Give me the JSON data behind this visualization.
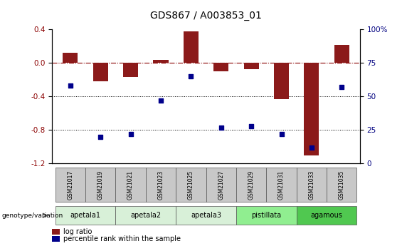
{
  "title": "GDS867 / A003853_01",
  "samples": [
    "GSM21017",
    "GSM21019",
    "GSM21021",
    "GSM21023",
    "GSM21025",
    "GSM21027",
    "GSM21029",
    "GSM21031",
    "GSM21033",
    "GSM21035"
  ],
  "log_ratio": [
    0.12,
    -0.22,
    -0.17,
    0.04,
    0.38,
    -0.1,
    -0.07,
    -0.43,
    -1.1,
    0.22
  ],
  "percentile_rank": [
    58,
    20,
    22,
    47,
    65,
    27,
    28,
    22,
    12,
    57
  ],
  "ylim_left": [
    -1.2,
    0.4
  ],
  "ylim_right": [
    0,
    100
  ],
  "yticks_left": [
    -1.2,
    -0.8,
    -0.4,
    0.0,
    0.4
  ],
  "yticks_right": [
    0,
    25,
    50,
    75,
    100
  ],
  "ytick_labels_right": [
    "0",
    "25",
    "50",
    "75",
    "100%"
  ],
  "hline_y": 0.0,
  "dotted_lines": [
    -0.4,
    -0.8
  ],
  "bar_color": "#8B1A1A",
  "dot_color": "#00008B",
  "groups": [
    {
      "label": "apetala1",
      "start": 0,
      "end": 2,
      "color": "#d8f0d8"
    },
    {
      "label": "apetala2",
      "start": 2,
      "end": 4,
      "color": "#d8f0d8"
    },
    {
      "label": "apetala3",
      "start": 4,
      "end": 6,
      "color": "#d8f0d8"
    },
    {
      "label": "pistillata",
      "start": 6,
      "end": 8,
      "color": "#90ee90"
    },
    {
      "label": "agamous",
      "start": 8,
      "end": 10,
      "color": "#50c850"
    }
  ],
  "group_row_label": "genotype/variation",
  "legend_items": [
    {
      "label": "log ratio",
      "color": "#8B1A1A"
    },
    {
      "label": "percentile rank within the sample",
      "color": "#00008B"
    }
  ],
  "bar_width": 0.5,
  "title_fontsize": 10,
  "tick_fontsize": 7.5,
  "label_fontsize": 7
}
